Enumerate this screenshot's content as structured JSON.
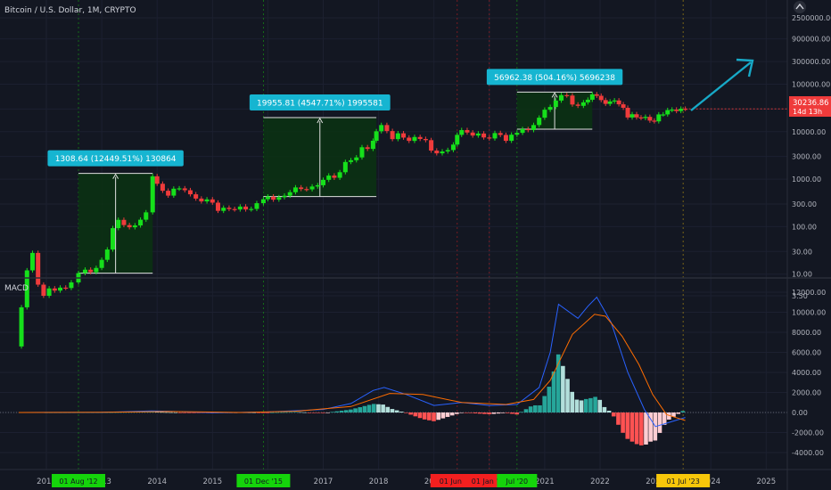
{
  "header": {
    "symbol_title": "Bitcoin / U.S. Dollar, 1M, CRYPTO"
  },
  "colors": {
    "background": "#131722",
    "up": "#16e01b",
    "down": "#ef3b3b",
    "macd_line": "#2962ff",
    "signal_line": "#ff6d00",
    "hist_up_strong": "#26a69a",
    "hist_up_weak": "#b2dfdb",
    "hist_down_strong": "#ff5252",
    "hist_down_weak": "#ffcdd2",
    "measure_fill": "#0b3312",
    "label_bg": "#16b5d1",
    "arrow": "#17a9c7",
    "price_tag": "#ef3b3b",
    "marker_green": "#15d40b",
    "marker_red": "#f31f1f",
    "marker_yellow": "#f7c70a"
  },
  "price_axis": {
    "scale": "log",
    "ticks": [
      "2500000.00",
      "900000.00",
      "300000.00",
      "100000.00",
      "30000.00",
      "10000.00",
      "3000.00",
      "1000.00",
      "300.00",
      "100.00",
      "30.00",
      "10.00",
      "3.50"
    ],
    "tick_values": [
      2500000,
      900000,
      300000,
      100000,
      30000,
      10000,
      3000,
      1000,
      300,
      100,
      30,
      10,
      3.5
    ],
    "current_price": "30236.86",
    "countdown": "14d 13h"
  },
  "macd_panel": {
    "label": "MACD",
    "ticks": [
      "12000.00",
      "10000.00",
      "8000.00",
      "6000.00",
      "4000.00",
      "2000.00",
      "0.00",
      "-2000.00",
      "-4000.00"
    ],
    "tick_values": [
      12000,
      10000,
      8000,
      6000,
      4000,
      2000,
      0,
      -2000,
      -4000
    ]
  },
  "time_axis": {
    "years": [
      "2012",
      "2013",
      "2014",
      "2015",
      "2016",
      "2017",
      "2018",
      "2019",
      "2020",
      "2021",
      "2022",
      "2023",
      "2024",
      "2025"
    ],
    "year_decimal": [
      2012,
      2013,
      2014,
      2015,
      2016,
      2017,
      2018,
      2019,
      2020,
      2021,
      2022,
      2023,
      2024,
      2025
    ]
  },
  "vertical_markers": [
    {
      "label": "01 Aug '12",
      "date": 2012.58,
      "color": "green"
    },
    {
      "label": "01 Dec '15",
      "date": 2015.92,
      "color": "green"
    },
    {
      "label": "01 Jun '19",
      "date": 2019.42,
      "color": "red"
    },
    {
      "label": "01 Jan '20",
      "date": 2020.0,
      "color": "red"
    },
    {
      "label": "Jul '20",
      "date": 2020.5,
      "color": "green"
    },
    {
      "label": "01 Jul '23",
      "date": 2023.5,
      "color": "yellow"
    }
  ],
  "measurements": [
    {
      "label": "1308.64 (12449.51%) 130864",
      "start": 2012.58,
      "end": 2013.92,
      "low": 10.5,
      "high": 1320
    },
    {
      "label": "19955.81 (4547.71%) 1995581",
      "start": 2015.92,
      "end": 2017.96,
      "low": 430,
      "high": 19780
    },
    {
      "label": "56962.38 (504.16%) 5696238",
      "start": 2020.5,
      "end": 2021.86,
      "low": 11300,
      "high": 68200
    }
  ],
  "chart_data": {
    "type": "candlestick",
    "title": "Bitcoin / U.S. Dollar, 1M, CRYPTO",
    "y_scale": "log",
    "points": [
      [
        2011.55,
        0.3,
        2
      ],
      [
        2011.65,
        2,
        12
      ],
      [
        2011.75,
        12,
        28
      ],
      [
        2011.85,
        28,
        6
      ],
      [
        2011.95,
        6,
        3.5
      ],
      [
        2012.05,
        3.5,
        5
      ],
      [
        2012.15,
        5,
        4.5
      ],
      [
        2012.25,
        4.5,
        5.2
      ],
      [
        2012.35,
        5.2,
        5.1
      ],
      [
        2012.45,
        5.1,
        6.7
      ],
      [
        2012.58,
        6.7,
        10.5
      ],
      [
        2012.7,
        10.5,
        12.4
      ],
      [
        2012.8,
        12.4,
        11
      ],
      [
        2012.9,
        11,
        13.5
      ],
      [
        2013.0,
        13.5,
        20
      ],
      [
        2013.1,
        20,
        33
      ],
      [
        2013.2,
        33,
        93
      ],
      [
        2013.3,
        93,
        139
      ],
      [
        2013.4,
        139,
        108
      ],
      [
        2013.5,
        108,
        97
      ],
      [
        2013.6,
        97,
        106
      ],
      [
        2013.7,
        106,
        140
      ],
      [
        2013.8,
        140,
        200
      ],
      [
        2013.92,
        200,
        1150
      ],
      [
        2014.0,
        1150,
        800
      ],
      [
        2014.1,
        800,
        570
      ],
      [
        2014.2,
        570,
        450
      ],
      [
        2014.3,
        450,
        630
      ],
      [
        2014.4,
        630,
        640
      ],
      [
        2014.5,
        640,
        585
      ],
      [
        2014.6,
        585,
        480
      ],
      [
        2014.7,
        480,
        390
      ],
      [
        2014.8,
        390,
        340
      ],
      [
        2014.9,
        340,
        375
      ],
      [
        2015.0,
        375,
        320
      ],
      [
        2015.1,
        320,
        215
      ],
      [
        2015.2,
        215,
        250
      ],
      [
        2015.3,
        250,
        235
      ],
      [
        2015.4,
        235,
        230
      ],
      [
        2015.5,
        230,
        265
      ],
      [
        2015.6,
        265,
        230
      ],
      [
        2015.7,
        230,
        236
      ],
      [
        2015.8,
        236,
        312
      ],
      [
        2015.92,
        312,
        378
      ],
      [
        2016.0,
        378,
        430
      ],
      [
        2016.1,
        430,
        370
      ],
      [
        2016.2,
        370,
        416
      ],
      [
        2016.3,
        416,
        448
      ],
      [
        2016.4,
        448,
        531
      ],
      [
        2016.5,
        531,
        670
      ],
      [
        2016.6,
        670,
        620
      ],
      [
        2016.7,
        620,
        610
      ],
      [
        2016.8,
        610,
        700
      ],
      [
        2016.9,
        700,
        745
      ],
      [
        2017.0,
        745,
        968
      ],
      [
        2017.1,
        968,
        1190
      ],
      [
        2017.2,
        1190,
        1070
      ],
      [
        2017.3,
        1070,
        1400
      ],
      [
        2017.4,
        1400,
        2300
      ],
      [
        2017.5,
        2300,
        2500
      ],
      [
        2017.6,
        2500,
        2870
      ],
      [
        2017.7,
        2870,
        4700
      ],
      [
        2017.8,
        4700,
        4340
      ],
      [
        2017.9,
        4340,
        6440
      ],
      [
        2017.96,
        6440,
        10200
      ],
      [
        2018.05,
        10200,
        13800
      ],
      [
        2018.15,
        13800,
        10300
      ],
      [
        2018.25,
        10300,
        6970
      ],
      [
        2018.35,
        6970,
        9250
      ],
      [
        2018.45,
        9250,
        7500
      ],
      [
        2018.55,
        7500,
        6400
      ],
      [
        2018.65,
        6400,
        7730
      ],
      [
        2018.75,
        7730,
        7030
      ],
      [
        2018.85,
        7030,
        6630
      ],
      [
        2018.95,
        6630,
        4000
      ],
      [
        2019.05,
        4000,
        3500
      ],
      [
        2019.15,
        3500,
        3830
      ],
      [
        2019.25,
        3830,
        4100
      ],
      [
        2019.35,
        4100,
        5350
      ],
      [
        2019.42,
        5350,
        8570
      ],
      [
        2019.5,
        8570,
        10800
      ],
      [
        2019.6,
        10800,
        9600
      ],
      [
        2019.7,
        9600,
        8290
      ],
      [
        2019.8,
        8290,
        9150
      ],
      [
        2019.9,
        9150,
        7550
      ],
      [
        2020.0,
        7550,
        7200
      ],
      [
        2020.1,
        7200,
        9350
      ],
      [
        2020.2,
        9350,
        8540
      ],
      [
        2020.3,
        8540,
        6420
      ],
      [
        2020.4,
        6420,
        8630
      ],
      [
        2020.5,
        8630,
        9450
      ],
      [
        2020.6,
        9450,
        11330
      ],
      [
        2020.7,
        11330,
        10780
      ],
      [
        2020.8,
        10780,
        13800
      ],
      [
        2020.9,
        13800,
        19700
      ],
      [
        2021.0,
        19700,
        29000
      ],
      [
        2021.1,
        29000,
        33100
      ],
      [
        2021.2,
        33100,
        45200
      ],
      [
        2021.3,
        45200,
        58800
      ],
      [
        2021.4,
        58800,
        57700
      ],
      [
        2021.5,
        57700,
        37300
      ],
      [
        2021.6,
        37300,
        35000
      ],
      [
        2021.7,
        35000,
        41500
      ],
      [
        2021.78,
        41500,
        47100
      ],
      [
        2021.86,
        47100,
        61300
      ],
      [
        2021.94,
        61300,
        57000
      ],
      [
        2022.02,
        57000,
        46300
      ],
      [
        2022.1,
        46300,
        38500
      ],
      [
        2022.18,
        38500,
        43200
      ],
      [
        2022.26,
        43200,
        45500
      ],
      [
        2022.34,
        45500,
        37700
      ],
      [
        2022.42,
        37700,
        31800
      ],
      [
        2022.5,
        31800,
        19900
      ],
      [
        2022.58,
        19900,
        23300
      ],
      [
        2022.66,
        23300,
        20000
      ],
      [
        2022.74,
        20000,
        19400
      ],
      [
        2022.82,
        19400,
        20500
      ],
      [
        2022.9,
        20500,
        17100
      ],
      [
        2022.98,
        17100,
        16500
      ],
      [
        2023.06,
        16500,
        23100
      ],
      [
        2023.14,
        23100,
        23100
      ],
      [
        2023.22,
        23100,
        28500
      ],
      [
        2023.3,
        28500,
        29200
      ],
      [
        2023.38,
        29200,
        27200
      ],
      [
        2023.46,
        27200,
        30400
      ],
      [
        2023.54,
        30400,
        30236
      ]
    ],
    "current_price": 30236.86
  }
}
